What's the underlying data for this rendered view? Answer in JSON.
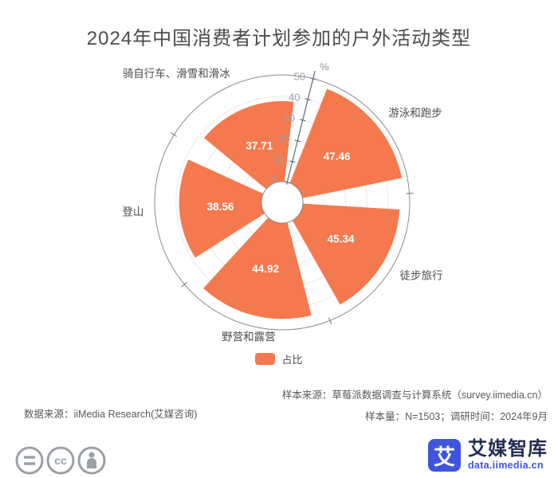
{
  "title": "2024年中国消费者计划参加的户外活动类型",
  "chart_data": {
    "type": "polar_bar",
    "categories": [
      "游泳和跑步",
      "徒步旅行",
      "野营和露营",
      "登山",
      "骑自行车、滑雪和滑冰"
    ],
    "values": [
      47.46,
      45.34,
      44.92,
      38.56,
      37.71
    ],
    "series_name": "占比",
    "unit": "%",
    "radial_ticks": [
      0,
      10,
      20,
      30,
      40,
      50
    ],
    "rlim": [
      0,
      50
    ],
    "start_angle_deg": 76,
    "bar_color": "#F4794E",
    "grid_on": true,
    "legend_position": "bottom"
  },
  "legend": {
    "label": "占比",
    "color": "#F4794E"
  },
  "footer": {
    "source_left": "数据来源：iiMedia Research(艾媒咨询)",
    "sample_source": "样本来源：草莓派数据调查与计算系统（survey.iimedia.cn）",
    "sample_info": "样本量：N=1503；调研时间：2024年9月"
  },
  "branding": {
    "logo_glyph": "艾",
    "brand_name": "艾媒智库",
    "brand_url": "data.iimedia.cn",
    "brand_color": "#3E56DD",
    "icons": [
      "equals-icon",
      "cc-icon",
      "person-icon"
    ]
  },
  "colors": {
    "bar": "#F4794E",
    "category_label": "#4d4d4d",
    "axis_label": "#9aa0a6",
    "axis_line": "#5E6A80",
    "outer_circle": "#8c8c8c",
    "grid_line": "#e9e9e9",
    "value_label": "#ffffff"
  }
}
